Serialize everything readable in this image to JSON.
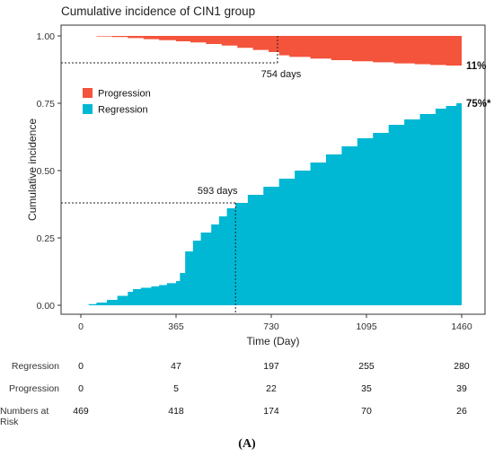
{
  "chart_data": {
    "type": "area",
    "title": "Cumulative incidence of CIN1 group",
    "xlabel": "Time (Day)",
    "ylabel": "Cumulative incidence",
    "xlim": [
      0,
      1460
    ],
    "ylim": [
      0,
      1
    ],
    "x_ticks": [
      "0",
      "365",
      "730",
      "1095",
      "1460"
    ],
    "x_tick_values": [
      0,
      365,
      730,
      1095,
      1460
    ],
    "y_ticks": [
      "0.00",
      "0.25",
      "0.50",
      "0.75",
      "1.00"
    ],
    "y_tick_values": [
      0,
      0.25,
      0.5,
      0.75,
      1.0
    ],
    "grid": false,
    "legend_position": "top-left",
    "series": [
      {
        "name": "Progression",
        "color": "#f4533c",
        "drawn_from_top": true,
        "end_label": "11%",
        "x": [
          0,
          60,
          120,
          180,
          240,
          300,
          365,
          420,
          480,
          540,
          600,
          660,
          720,
          760,
          800,
          880,
          960,
          1040,
          1120,
          1200,
          1280,
          1340,
          1400,
          1460
        ],
        "values": [
          0,
          0.002,
          0.004,
          0.008,
          0.012,
          0.016,
          0.02,
          0.024,
          0.03,
          0.036,
          0.044,
          0.052,
          0.06,
          0.072,
          0.078,
          0.084,
          0.09,
          0.094,
          0.098,
          0.102,
          0.105,
          0.108,
          0.11,
          0.11
        ]
      },
      {
        "name": "Regression",
        "color": "#00b8d4",
        "end_label": "75%*",
        "x": [
          0,
          30,
          60,
          100,
          140,
          180,
          200,
          230,
          270,
          300,
          330,
          365,
          380,
          400,
          430,
          460,
          500,
          530,
          560,
          593,
          640,
          700,
          760,
          820,
          880,
          940,
          1000,
          1060,
          1120,
          1180,
          1240,
          1300,
          1360,
          1400,
          1440,
          1460
        ],
        "values": [
          0,
          0.004,
          0.01,
          0.02,
          0.035,
          0.05,
          0.06,
          0.065,
          0.07,
          0.075,
          0.082,
          0.09,
          0.12,
          0.2,
          0.24,
          0.27,
          0.3,
          0.33,
          0.36,
          0.38,
          0.41,
          0.44,
          0.47,
          0.5,
          0.53,
          0.56,
          0.59,
          0.62,
          0.64,
          0.67,
          0.69,
          0.71,
          0.73,
          0.74,
          0.75,
          0.75
        ]
      }
    ],
    "annotations": [
      {
        "series": "Progression",
        "text": "754 days",
        "x": 754,
        "y": 0.9
      },
      {
        "series": "Regression",
        "text": "593 days",
        "x": 593,
        "y": 0.38
      }
    ],
    "risk_table": {
      "x": [
        0,
        365,
        730,
        1095,
        1460
      ],
      "rows": [
        {
          "label": "Regression",
          "values": [
            "0",
            "47",
            "197",
            "255",
            "280"
          ]
        },
        {
          "label": "Progression",
          "values": [
            "0",
            "5",
            "22",
            "35",
            "39"
          ]
        },
        {
          "label": "Numbers at Risk",
          "values": [
            "469",
            "418",
            "174",
            "70",
            "26"
          ]
        }
      ]
    }
  },
  "panel_label": "(A)"
}
